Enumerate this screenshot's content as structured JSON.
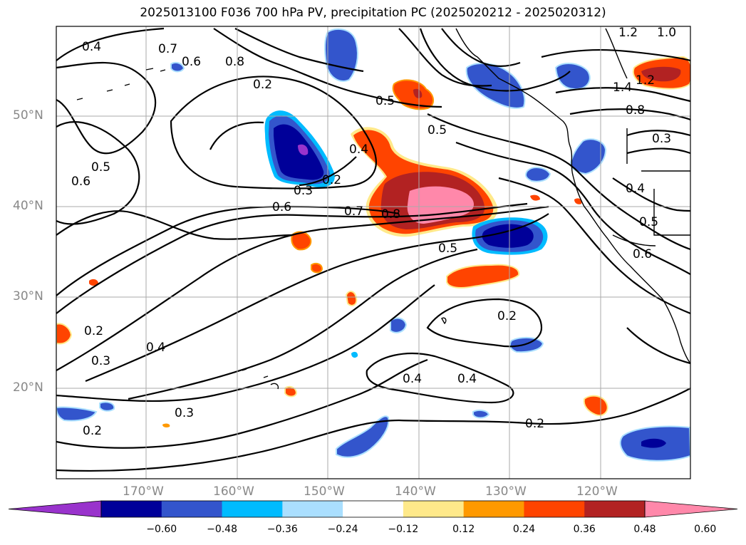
{
  "title": "2025013100 F036 700 hPa PV, precipitation PC (2025020212 - 2025020312)",
  "latitude_labels": [
    "50°N",
    "40°N",
    "30°N",
    "20°N"
  ],
  "longitude_labels": [
    "170°W",
    "160°W",
    "150°W",
    "140°W",
    "130°W",
    "120°W"
  ],
  "colorbar": {
    "tick_labels": [
      "−0.60",
      "−0.48",
      "−0.36",
      "−0.24",
      "−0.12",
      "0.12",
      "0.24",
      "0.36",
      "0.48",
      "0.60"
    ],
    "colors": [
      "#9933cc",
      "#000099",
      "#3355cc",
      "#00bbff",
      "#aadfff",
      "#ffffff",
      "#ffe98a",
      "#ff9900",
      "#ff4400",
      "#b22222",
      "#ff88aa"
    ]
  },
  "contour_labels": [
    "0.4",
    "0.7",
    "0.6",
    "0.8",
    "0.2",
    "0.5",
    "0.5",
    "0.4",
    "0.6",
    "0.5",
    "0.3",
    "0.2",
    "0.6",
    "0.7",
    "0.8",
    "0.5",
    "0.2",
    "0.4",
    "0.4",
    "0.2",
    "0.3",
    "0.4",
    "0.2",
    "0.3",
    "0.2",
    "1.2",
    "1.0",
    "1.4",
    "1.2",
    "0.8",
    "0.3",
    "0.4",
    "0.5",
    "0.6"
  ]
}
